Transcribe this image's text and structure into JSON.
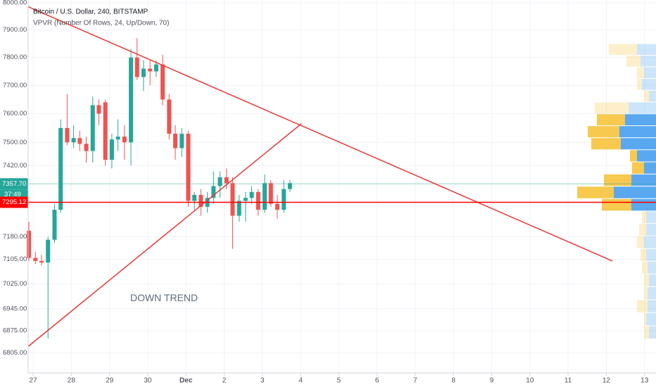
{
  "chart_data": {
    "type": "candlestick",
    "title": "Bitcoin / U.S. Dollar, 240, BITSTAMP",
    "subtitle": "VPVR (Number Of Rows, 24, Up/Down, 70)",
    "log_scale": true,
    "grid": true,
    "up_color": "#26a69a",
    "down_color": "#ef5350",
    "xlim": [
      -0.13,
      16.3
    ],
    "xticks": [
      {
        "value": 0,
        "label": "27"
      },
      {
        "value": 1,
        "label": "28"
      },
      {
        "value": 2,
        "label": "29"
      },
      {
        "value": 3,
        "label": "30"
      },
      {
        "value": 4,
        "label": "Dec"
      },
      {
        "value": 5,
        "label": "2"
      },
      {
        "value": 6,
        "label": "3"
      },
      {
        "value": 7,
        "label": "4"
      },
      {
        "value": 8,
        "label": "5"
      },
      {
        "value": 9,
        "label": "6"
      },
      {
        "value": 10,
        "label": "7"
      },
      {
        "value": 11,
        "label": "8"
      },
      {
        "value": 12,
        "label": "9"
      },
      {
        "value": 13,
        "label": "10"
      },
      {
        "value": 14,
        "label": "11"
      },
      {
        "value": 15,
        "label": "12"
      },
      {
        "value": 16,
        "label": "13"
      }
    ],
    "ylim": [
      6742,
      8010
    ],
    "yticks": [
      {
        "value": 8000,
        "label": "8000.00"
      },
      {
        "value": 7900,
        "label": "7900.00"
      },
      {
        "value": 7800,
        "label": "7800.00"
      },
      {
        "value": 7700,
        "label": "7700.00"
      },
      {
        "value": 7600,
        "label": "7600.00"
      },
      {
        "value": 7500,
        "label": "7500.00"
      },
      {
        "value": 7420,
        "label": "7420.00"
      },
      {
        "value": 7180,
        "label": "7180.00"
      },
      {
        "value": 7105,
        "label": "7105.00"
      },
      {
        "value": 7025,
        "label": "7025.00"
      },
      {
        "value": 6945,
        "label": "6945.00"
      },
      {
        "value": 6875,
        "label": "6875.00"
      },
      {
        "value": 6805,
        "label": "6805.00"
      }
    ],
    "x": [
      -0.11,
      0.06,
      0.22,
      0.39,
      0.56,
      0.72,
      0.89,
      1.06,
      1.22,
      1.39,
      1.56,
      1.72,
      1.89,
      2.06,
      2.22,
      2.39,
      2.56,
      2.72,
      2.89,
      3.06,
      3.22,
      3.39,
      3.56,
      3.72,
      3.89,
      4.06,
      4.22,
      4.39,
      4.56,
      4.72,
      4.89,
      5.06,
      5.22,
      5.39,
      5.56,
      5.72,
      5.89,
      6.06,
      6.22,
      6.39,
      6.56,
      6.72
    ],
    "open": [
      7200,
      7110,
      7100,
      7095,
      7170,
      7270,
      7550,
      7500,
      7515,
      7495,
      7470,
      7630,
      7640,
      7440,
      7510,
      7520,
      7500,
      7800,
      7730,
      7760,
      7750,
      7775,
      7650,
      7530,
      7480,
      7530,
      7300,
      7320,
      7280,
      7310,
      7350,
      7380,
      7360,
      7250,
      7300,
      7310,
      7330,
      7270,
      7360,
      7290,
      7270,
      7340
    ],
    "high": [
      7230,
      7130,
      7120,
      7180,
      7290,
      7580,
      7670,
      7560,
      7540,
      7520,
      7660,
      7650,
      7650,
      7530,
      7580,
      7560,
      7830,
      7870,
      7790,
      7790,
      7790,
      7810,
      7670,
      7560,
      7550,
      7540,
      7330,
      7340,
      7330,
      7400,
      7400,
      7410,
      7380,
      7320,
      7330,
      7350,
      7340,
      7390,
      7370,
      7320,
      7370,
      7370
    ],
    "low": [
      7100,
      7090,
      7085,
      6850,
      7160,
      7260,
      7490,
      7480,
      7470,
      7430,
      7430,
      7560,
      7420,
      7410,
      7470,
      7440,
      7420,
      7720,
      7680,
      7700,
      7730,
      7630,
      7510,
      7440,
      7450,
      7280,
      7270,
      7250,
      7260,
      7290,
      7310,
      7340,
      7140,
      7230,
      7230,
      7290,
      7250,
      7260,
      7280,
      7240,
      7260,
      7330
    ],
    "close": [
      7110,
      7100,
      7095,
      7170,
      7270,
      7550,
      7500,
      7515,
      7495,
      7470,
      7630,
      7600,
      7440,
      7510,
      7520,
      7500,
      7800,
      7730,
      7760,
      7750,
      7775,
      7650,
      7530,
      7480,
      7530,
      7300,
      7320,
      7280,
      7310,
      7350,
      7380,
      7360,
      7250,
      7300,
      7310,
      7330,
      7270,
      7360,
      7290,
      7270,
      7340,
      7360
    ],
    "last_price": {
      "value": 7357.7,
      "label": "7357.70",
      "color": "#26a69a"
    },
    "countdown": "37:49",
    "horizontal_line": {
      "value": 7295.12,
      "label": "7295.12",
      "color": "#ff0000"
    },
    "trend_lines": [
      {
        "x": [
          -0.13,
          15.16
        ],
        "y": [
          7985,
          7100
        ],
        "color": "#e53935"
      },
      {
        "x": [
          -0.13,
          7.02
        ],
        "y": [
          6825,
          7565
        ],
        "color": "#e53935"
      }
    ],
    "annotation": {
      "text": "DOWN TREND",
      "x": 2.54,
      "y": 6978
    },
    "vpvr": {
      "price_high": 7851,
      "price_low": 6850,
      "value_area": [
        7260,
        7620
      ],
      "up_color": "#5aa9f0",
      "down_color": "#f7c94e",
      "up": [
        27,
        22,
        17,
        20,
        10,
        39,
        44,
        52,
        50,
        27,
        17,
        35,
        60,
        35,
        14,
        14,
        17,
        14,
        12,
        10,
        12,
        12,
        14,
        10
      ],
      "down": [
        40,
        20,
        10,
        7,
        7,
        48,
        40,
        45,
        42,
        10,
        17,
        39,
        52,
        42,
        6,
        10,
        10,
        8,
        8,
        7,
        5,
        15,
        3,
        7
      ]
    }
  }
}
